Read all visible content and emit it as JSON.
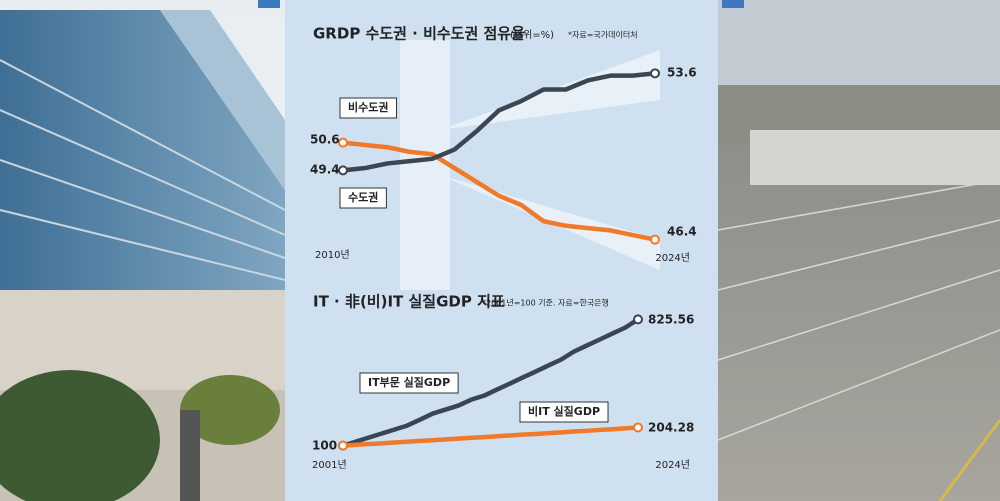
{
  "chart_data": [
    {
      "type": "line",
      "title": "GRDP 수도권 · 비수도권 점유율",
      "unit": "(단위=%)",
      "source": "*자료=국가데이터처",
      "categories": [
        "2010년",
        null,
        null,
        null,
        null,
        null,
        null,
        null,
        null,
        null,
        null,
        null,
        null,
        null,
        "2024년"
      ],
      "series": [
        {
          "name": "비수도권",
          "color": "#f07a2a",
          "values": [
            50.6,
            50.5,
            50.4,
            50.2,
            50.1,
            49.5,
            48.9,
            48.3,
            47.9,
            47.2,
            47.0,
            46.9,
            46.8,
            46.6,
            46.4
          ]
        },
        {
          "name": "수도권",
          "color": "#3a4652",
          "values": [
            49.4,
            49.5,
            49.7,
            49.8,
            49.9,
            50.3,
            51.1,
            52.0,
            52.4,
            52.9,
            52.9,
            53.3,
            53.5,
            53.5,
            53.6
          ]
        }
      ],
      "ylim": [
        45,
        55
      ]
    },
    {
      "type": "line",
      "title": "IT · 非(비)IT 실질GDP 지표",
      "source": "*2001년=100 기준. 자료=한국은행",
      "categories": [
        "2001년",
        null,
        null,
        null,
        null,
        null,
        null,
        null,
        null,
        null,
        null,
        null,
        null,
        null,
        null,
        null,
        null,
        null,
        null,
        null,
        null,
        null,
        null,
        "2024년"
      ],
      "series": [
        {
          "name": "IT부문 실질GDP",
          "color": "#3a4652",
          "values": [
            100,
            123,
            146,
            169,
            192,
            215,
            249,
            284,
            307,
            330,
            364,
            387,
            422,
            456,
            491,
            525,
            560,
            594,
            640,
            675,
            709,
            744,
            778,
            825.56
          ]
        },
        {
          "name": "비IT 실질GDP",
          "color": "#f07a2a",
          "values": [
            100,
            104,
            109,
            113,
            118,
            122,
            127,
            131,
            136,
            140,
            145,
            149,
            154,
            158,
            163,
            167,
            172,
            176,
            181,
            185,
            190,
            194,
            199,
            204.28
          ]
        }
      ],
      "ylim": [
        0,
        1000
      ]
    }
  ]
}
